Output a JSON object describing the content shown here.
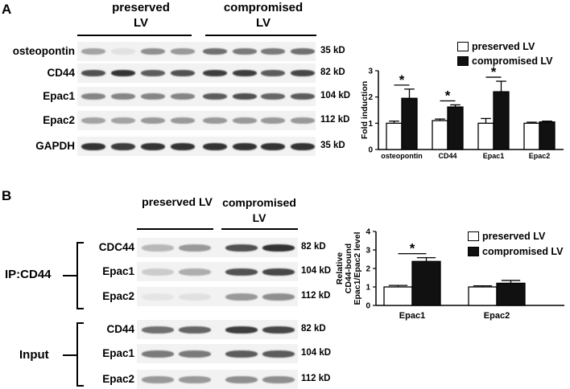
{
  "panelA": {
    "letter": "A",
    "group_left": "preserved\nLV",
    "group_left_l1": "preserved",
    "group_left_l2": "LV",
    "group_right_l1": "compromised",
    "group_right_l2": "LV",
    "rows": [
      {
        "label": "osteopontin",
        "kd": "35 kD",
        "intensity": [
          0.35,
          0.05,
          0.45,
          0.4,
          0.6,
          0.55,
          0.55,
          0.6
        ]
      },
      {
        "label": "CD44",
        "kd": "82 kD",
        "intensity": [
          0.75,
          0.9,
          0.7,
          0.75,
          0.85,
          0.85,
          0.7,
          0.8
        ]
      },
      {
        "label": "Epac1",
        "kd": "104 kD",
        "intensity": [
          0.5,
          0.5,
          0.5,
          0.5,
          0.7,
          0.75,
          0.65,
          0.7
        ]
      },
      {
        "label": "Epac2",
        "kd": "112 kD",
        "intensity": [
          0.35,
          0.35,
          0.4,
          0.4,
          0.4,
          0.4,
          0.4,
          0.4
        ]
      },
      {
        "label": "GAPDH",
        "kd": "35 kD",
        "intensity": [
          0.9,
          0.85,
          0.9,
          0.9,
          0.9,
          0.9,
          0.9,
          0.9
        ]
      }
    ]
  },
  "panelB": {
    "letter": "B",
    "group_left": "preserved LV",
    "group_right_l1": "compromised",
    "group_right_l2": "LV",
    "ip_label": "IP:CD44",
    "input_label": "Input",
    "ip_rows": [
      {
        "label": "CDC44",
        "kd": "82 kD",
        "intensity": [
          0.25,
          0.4,
          0.75,
          0.9
        ]
      },
      {
        "label": "Epac1",
        "kd": "104 kD",
        "intensity": [
          0.15,
          0.3,
          0.75,
          0.8
        ]
      },
      {
        "label": "Epac2",
        "kd": "112 kD",
        "intensity": [
          0.03,
          0.05,
          0.4,
          0.45
        ]
      }
    ],
    "input_rows": [
      {
        "label": "CD44",
        "kd": "82 kD",
        "intensity": [
          0.6,
          0.65,
          0.85,
          0.8
        ]
      },
      {
        "label": "Epac1",
        "kd": "104 kD",
        "intensity": [
          0.55,
          0.55,
          0.7,
          0.7
        ]
      },
      {
        "label": "Epac2",
        "kd": "112 kD",
        "intensity": [
          0.4,
          0.4,
          0.45,
          0.45
        ]
      }
    ]
  },
  "chart_data": [
    {
      "type": "bar",
      "categories": [
        "osteopontin",
        "CD44",
        "Epac1",
        "Epac2"
      ],
      "series": [
        {
          "name": "preserved LV",
          "values": [
            1.0,
            1.1,
            1.0,
            1.0
          ],
          "errors": [
            0.08,
            0.06,
            0.18,
            0.04
          ],
          "color": "#ffffff"
        },
        {
          "name": "compromised LV",
          "values": [
            1.95,
            1.62,
            2.2,
            1.05
          ],
          "errors": [
            0.35,
            0.08,
            0.4,
            0.03
          ],
          "color": "#111111"
        }
      ],
      "ylabel": "Fold induction",
      "ylim": [
        0,
        3
      ],
      "yticks": [
        "0",
        "1",
        "2",
        "3"
      ],
      "significance": [
        "*",
        "*",
        "*",
        ""
      ]
    },
    {
      "type": "bar",
      "categories": [
        "Epac1",
        "Epac2"
      ],
      "series": [
        {
          "name": "preserved LV",
          "values": [
            1.0,
            1.0
          ],
          "errors": [
            0.08,
            0.06
          ],
          "color": "#ffffff"
        },
        {
          "name": "compromised LV",
          "values": [
            2.38,
            1.2
          ],
          "errors": [
            0.2,
            0.15
          ],
          "color": "#111111"
        }
      ],
      "ylabel": "Relative\nCD44-bound\nEpac1/Epac2 level",
      "ylabel_l1": "Relative",
      "ylabel_l2": "CD44-bound",
      "ylabel_l3": "Epac1/Epac2 level",
      "ylim": [
        0,
        4
      ],
      "yticks": [
        "0",
        "1",
        "2",
        "3",
        "4"
      ],
      "significance": [
        "*",
        ""
      ]
    }
  ]
}
